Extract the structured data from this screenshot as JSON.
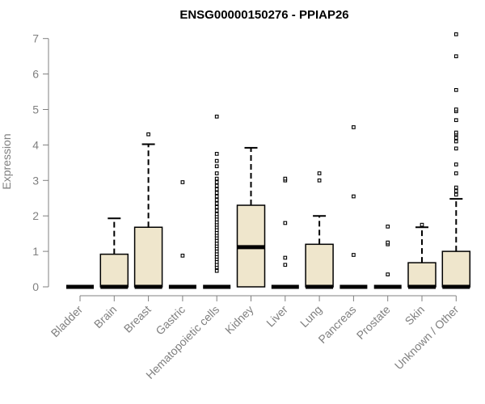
{
  "chart_data": {
    "type": "boxplot",
    "title": "ENSG00000150276 - PPIAP26",
    "ylabel": "Expression",
    "xlabel": "",
    "ylim": [
      0,
      7
    ],
    "yticks": [
      0,
      1,
      2,
      3,
      4,
      5,
      6,
      7
    ],
    "box_fill": "#efe6cc",
    "categories": [
      "Bladder",
      "Brain",
      "Breast",
      "Gastric",
      "Hematopoietic cells",
      "Kidney",
      "Liver",
      "Lung",
      "Pancreas",
      "Prostate",
      "Skin",
      "Unknown / Other"
    ],
    "boxes": [
      {
        "q1": 0,
        "median": 0,
        "q3": 0,
        "whisker_low": 0,
        "whisker_high": 0,
        "outliers": []
      },
      {
        "q1": 0,
        "median": 0,
        "q3": 0.92,
        "whisker_low": 0,
        "whisker_high": 1.93,
        "outliers": []
      },
      {
        "q1": 0,
        "median": 0,
        "q3": 1.68,
        "whisker_low": 0,
        "whisker_high": 4.02,
        "outliers": [
          4.3
        ]
      },
      {
        "q1": 0,
        "median": 0,
        "q3": 0,
        "whisker_low": 0,
        "whisker_high": 0,
        "outliers": [
          0.88,
          2.95
        ]
      },
      {
        "q1": 0,
        "median": 0,
        "q3": 0,
        "whisker_low": 0,
        "whisker_high": 0,
        "outliers": [
          0.45,
          0.55,
          0.62,
          0.7,
          0.78,
          0.85,
          0.92,
          1.0,
          1.08,
          1.15,
          1.22,
          1.3,
          1.38,
          1.45,
          1.52,
          1.6,
          1.68,
          1.75,
          1.82,
          1.9,
          1.98,
          2.05,
          2.15,
          2.25,
          2.35,
          2.45,
          2.55,
          2.65,
          2.75,
          2.85,
          2.95,
          3.05,
          3.2,
          3.4,
          3.55,
          3.75,
          4.8
        ]
      },
      {
        "q1": 0,
        "median": 1.12,
        "q3": 2.3,
        "whisker_low": 0,
        "whisker_high": 3.92,
        "outliers": []
      },
      {
        "q1": 0,
        "median": 0,
        "q3": 0,
        "whisker_low": 0,
        "whisker_high": 0,
        "outliers": [
          0.62,
          0.82,
          1.8,
          3.0,
          3.05
        ]
      },
      {
        "q1": 0,
        "median": 0,
        "q3": 1.2,
        "whisker_low": 0,
        "whisker_high": 2.0,
        "outliers": [
          3.0,
          3.2
        ]
      },
      {
        "q1": 0,
        "median": 0,
        "q3": 0,
        "whisker_low": 0,
        "whisker_high": 0,
        "outliers": [
          0.9,
          2.55,
          4.5
        ]
      },
      {
        "q1": 0,
        "median": 0,
        "q3": 0,
        "whisker_low": 0,
        "whisker_high": 0,
        "outliers": [
          0.35,
          1.2,
          1.25,
          1.7
        ]
      },
      {
        "q1": 0,
        "median": 0,
        "q3": 0.68,
        "whisker_low": 0,
        "whisker_high": 1.68,
        "outliers": [
          1.75
        ]
      },
      {
        "q1": 0,
        "median": 0,
        "q3": 1.0,
        "whisker_low": 0,
        "whisker_high": 2.48,
        "outliers": [
          2.6,
          2.7,
          2.8,
          3.2,
          3.45,
          3.9,
          4.1,
          4.2,
          4.3,
          4.35,
          4.7,
          4.95,
          5.0,
          5.55,
          6.5,
          7.12
        ]
      }
    ]
  }
}
